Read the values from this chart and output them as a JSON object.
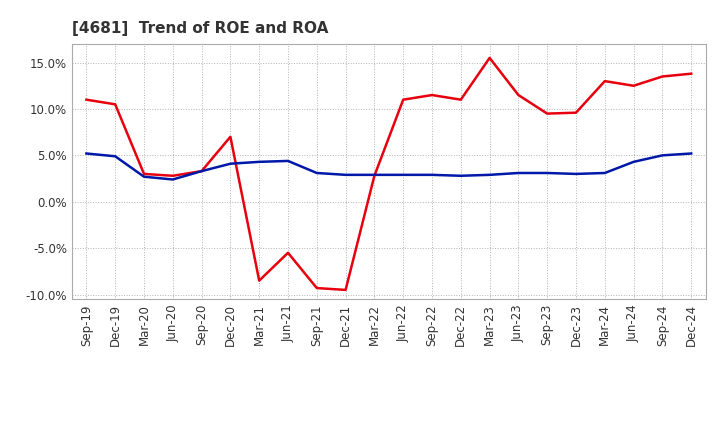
{
  "title": "[4681]  Trend of ROE and ROA",
  "x_labels": [
    "Sep-19",
    "Dec-19",
    "Mar-20",
    "Jun-20",
    "Sep-20",
    "Dec-20",
    "Mar-21",
    "Jun-21",
    "Sep-21",
    "Dec-21",
    "Mar-22",
    "Jun-22",
    "Sep-22",
    "Dec-22",
    "Mar-23",
    "Jun-23",
    "Sep-23",
    "Dec-23",
    "Mar-24",
    "Jun-24",
    "Sep-24",
    "Dec-24"
  ],
  "roe": [
    11.0,
    10.5,
    3.0,
    2.8,
    3.3,
    7.0,
    -8.5,
    -5.5,
    -9.3,
    -9.5,
    2.8,
    11.0,
    11.5,
    11.0,
    15.5,
    11.5,
    9.5,
    9.6,
    13.0,
    12.5,
    13.5,
    13.8
  ],
  "roa": [
    5.2,
    4.9,
    2.7,
    2.4,
    3.3,
    4.1,
    4.3,
    4.4,
    3.1,
    2.9,
    2.9,
    2.9,
    2.9,
    2.8,
    2.9,
    3.1,
    3.1,
    3.0,
    3.1,
    4.3,
    5.0,
    5.2
  ],
  "roe_color": "#e8000e",
  "roa_color": "#0018a8",
  "ylim": [
    -10.5,
    17.0
  ],
  "yticks": [
    -10.0,
    -5.0,
    0.0,
    5.0,
    10.0,
    15.0
  ],
  "background_color": "#ffffff",
  "grid_color": "#aaaaaa",
  "title_fontsize": 11,
  "axis_fontsize": 8.5,
  "legend_fontsize": 10,
  "line_width": 1.8
}
